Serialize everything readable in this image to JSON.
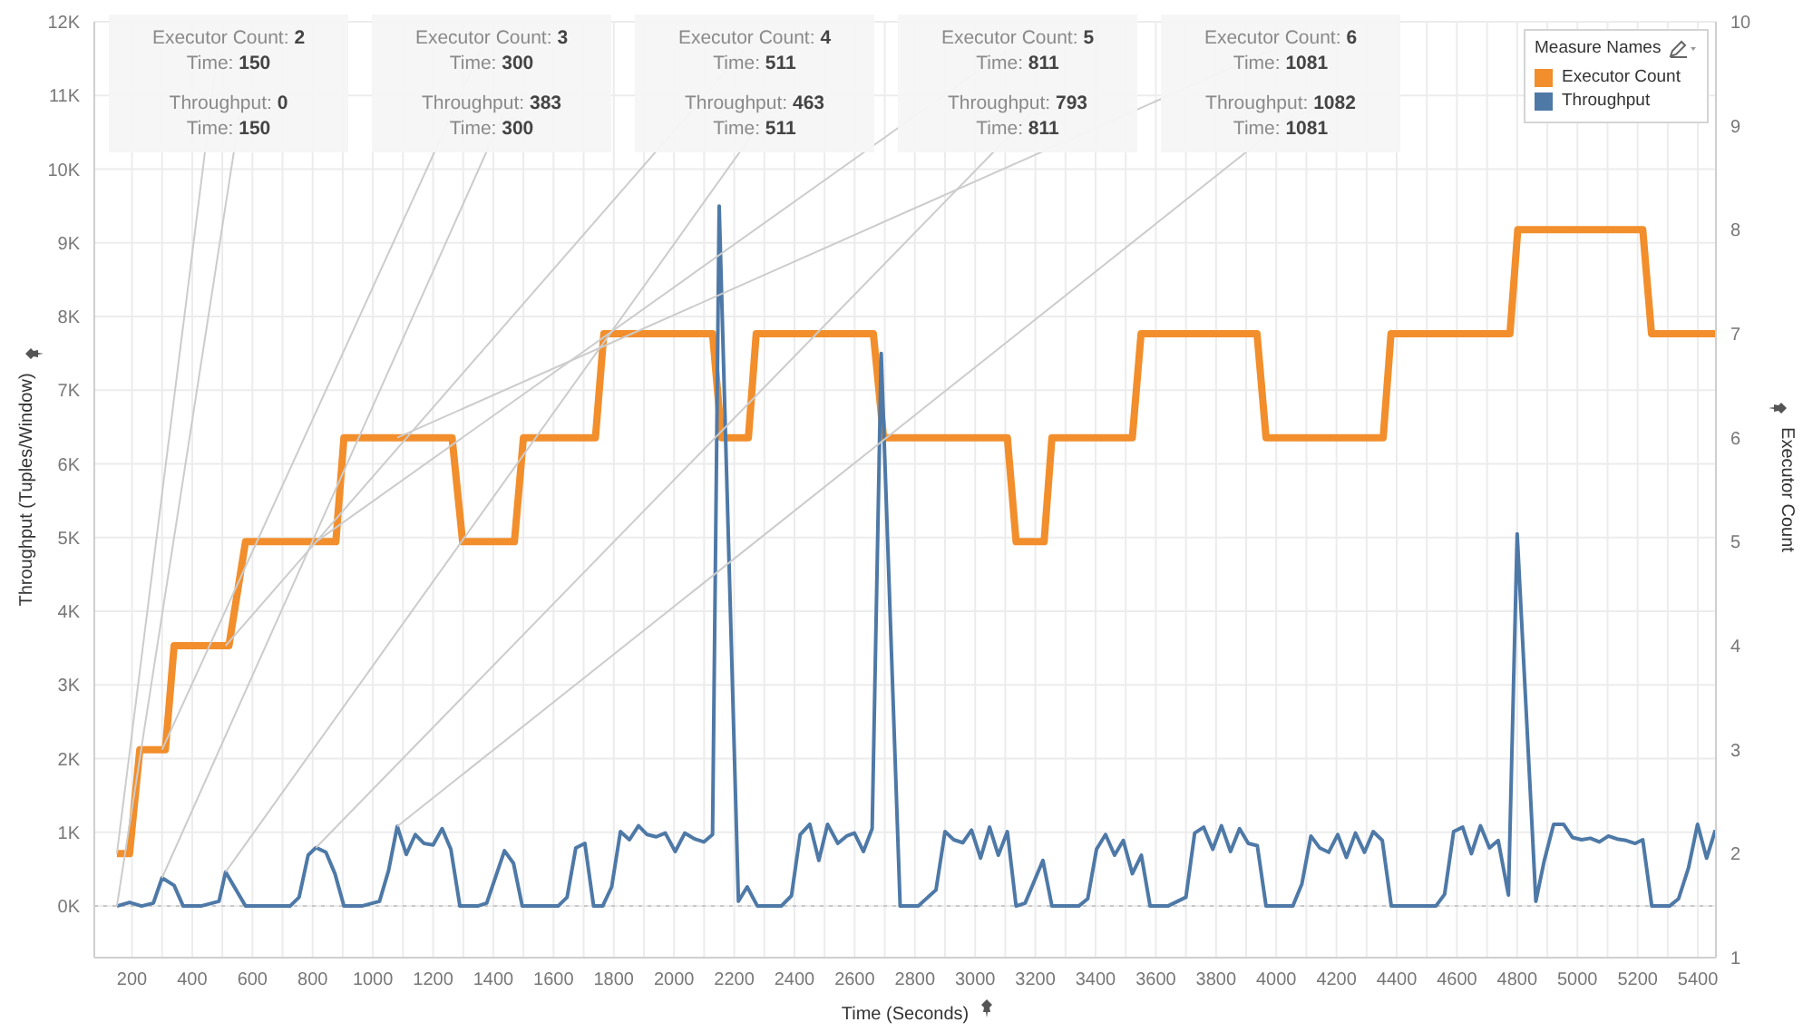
{
  "chart_data": {
    "type": "line",
    "xlabel": "Time (Seconds)",
    "ylabel": "Throughput (Tuples/Window)",
    "y2label": "Executor Count",
    "legend_title": "Measure Names",
    "legend": "top right",
    "grid": true,
    "xlim": [
      75,
      5460
    ],
    "xticks": [
      200,
      {
        "value": 300,
        "label": null
      },
      400,
      {
        "value": 500,
        "label": null
      },
      600,
      {
        "value": 700,
        "label": null
      },
      800,
      {
        "value": 900,
        "label": null
      },
      1000,
      {
        "value": 1100,
        "label": null
      },
      1200,
      {
        "value": 1300,
        "label": null
      },
      1400,
      {
        "value": 1500,
        "label": null
      },
      1600,
      {
        "value": 1700,
        "label": null
      },
      1800,
      {
        "value": 1900,
        "label": null
      },
      2000,
      {
        "value": 2100,
        "label": null
      },
      2200,
      {
        "value": 2300,
        "label": null
      },
      2400,
      {
        "value": 2500,
        "label": null
      },
      2600,
      {
        "value": 2700,
        "label": null
      },
      2800,
      {
        "value": 2900,
        "label": null
      },
      3000,
      {
        "value": 3100,
        "label": null
      },
      3200,
      {
        "value": 3300,
        "label": null
      },
      3400,
      {
        "value": 3500,
        "label": null
      },
      3600,
      {
        "value": 3700,
        "label": null
      },
      3800,
      {
        "value": 3900,
        "label": null
      },
      4000,
      {
        "value": 4100,
        "label": null
      },
      4200,
      {
        "value": 4300,
        "label": null
      },
      4400,
      {
        "value": 4500,
        "label": null
      },
      4600,
      {
        "value": 4700,
        "label": null
      },
      4800,
      {
        "value": 4900,
        "label": null
      },
      5000,
      {
        "value": 5100,
        "label": null
      },
      5200,
      {
        "value": 5300,
        "label": null
      },
      5400
    ],
    "ylim": [
      -700,
      12000
    ],
    "yticks": [
      {
        "value": 0,
        "label": "0K"
      },
      {
        "value": 1000,
        "label": "1K"
      },
      {
        "value": 2000,
        "label": "2K"
      },
      {
        "value": 3000,
        "label": "3K"
      },
      {
        "value": 4000,
        "label": "4K"
      },
      {
        "value": 5000,
        "label": "5K"
      },
      {
        "value": 6000,
        "label": "6K"
      },
      {
        "value": 7000,
        "label": "7K"
      },
      {
        "value": 8000,
        "label": "8K"
      },
      {
        "value": 9000,
        "label": "9K"
      },
      {
        "value": 10000,
        "label": "10K"
      },
      {
        "value": 11000,
        "label": "11K"
      },
      {
        "value": 12000,
        "label": "12K"
      }
    ],
    "y2lim": [
      1,
      10
    ],
    "y2ticks": [
      1,
      2,
      3,
      4,
      5,
      6,
      7,
      8,
      9,
      10
    ],
    "ref_lines": [
      {
        "axis": "y",
        "value": 0,
        "color": "#c8c8c8",
        "line_style": "dotted"
      }
    ],
    "annotations": [
      "Executor Count: 2",
      "Time: 150",
      {
        "text": "Throughput: 0",
        "x": 150,
        "y": 0
      },
      "Time: 150",
      "Executor Count: 3",
      "Time: 300",
      {
        "text": "Throughput: 383",
        "x": 300,
        "y": 383
      },
      "Time: 300",
      "Executor Count: 4",
      "Time: 511",
      {
        "text": "Throughput: 463",
        "x": 511,
        "y": 463
      },
      "Time: 511",
      "Executor Count: 5",
      "Time: 811",
      {
        "text": "Throughput: 793",
        "x": 811,
        "y": 793
      },
      "Time: 811",
      "Executor Count: 6",
      "Time: 1081",
      {
        "text": "Throughput: 1082",
        "x": 1081,
        "y": 1082
      },
      "Time: 1081"
    ],
    "series": [
      {
        "name": "Executor Count",
        "color": "#f28e2b",
        "axis": "y2",
        "x": [
          150,
          192,
          226,
          311,
          340,
          522,
          577,
          877,
          904,
          1263,
          1298,
          1470,
          1500,
          1739,
          1767,
          2128,
          2158,
          2247,
          2273,
          2662,
          2696,
          3107,
          3136,
          3229,
          3255,
          3522,
          3551,
          3936,
          3966,
          4355,
          4381,
          4776,
          4802,
          5217,
          5246,
          5458
        ],
        "values": [
          2,
          2,
          3,
          3,
          4,
          4,
          5,
          5,
          6,
          6,
          5,
          5,
          6,
          6,
          7,
          7,
          6,
          6,
          7,
          7,
          6,
          6,
          5,
          5,
          6,
          6,
          7,
          7,
          6,
          6,
          7,
          7,
          8,
          8,
          7,
          7
        ]
      },
      {
        "name": "Throughput",
        "color": "#4e79a7",
        "x": [
          150,
          192,
          232,
          271,
          300,
          340,
          370,
          429,
          489,
          511,
          577,
          725,
          755,
          785,
          811,
          844,
          874,
          904,
          963,
          1022,
          1052,
          1081,
          1111,
          1141,
          1170,
          1200,
          1230,
          1259,
          1289,
          1348,
          1378,
          1437,
          1467,
          1496,
          1615,
          1645,
          1674,
          1704,
          1733,
          1763,
          1793,
          1822,
          1852,
          1882,
          1911,
          1941,
          1971,
          2004,
          2036,
          2069,
          2099,
          2128,
          2150,
          2214,
          2243,
          2277,
          2356,
          2390,
          2419,
          2451,
          2481,
          2510,
          2544,
          2573,
          2599,
          2629,
          2658,
          2688,
          2751,
          2811,
          2870,
          2900,
          2929,
          2959,
          2988,
          3018,
          3048,
          3077,
          3107,
          3136,
          3166,
          3225,
          3255,
          3344,
          3374,
          3403,
          3433,
          3463,
          3492,
          3522,
          3552,
          3581,
          3640,
          3700,
          3729,
          3759,
          3789,
          3818,
          3848,
          3878,
          3907,
          3937,
          3966,
          4055,
          4085,
          4115,
          4144,
          4174,
          4204,
          4233,
          4263,
          4293,
          4322,
          4352,
          4382,
          4530,
          4559,
          4589,
          4619,
          4648,
          4678,
          4708,
          4737,
          4771,
          4800,
          4862,
          4889,
          4921,
          4954,
          4984,
          5014,
          5043,
          5073,
          5103,
          5132,
          5162,
          5192,
          5217,
          5247,
          5306,
          5336,
          5369,
          5399,
          5429,
          5458
        ],
        "values": [
          0,
          50,
          0,
          40,
          383,
          280,
          0,
          0,
          65,
          463,
          0,
          0,
          120,
          690,
          793,
          730,
          440,
          0,
          0,
          65,
          480,
          1082,
          700,
          970,
          850,
          830,
          1050,
          770,
          0,
          0,
          40,
          750,
          580,
          0,
          0,
          120,
          790,
          850,
          0,
          0,
          260,
          1010,
          900,
          1090,
          970,
          940,
          990,
          740,
          990,
          910,
          870,
          970,
          9500,
          65,
          260,
          0,
          0,
          140,
          970,
          1110,
          620,
          1110,
          850,
          950,
          990,
          740,
          1050,
          7500,
          0,
          0,
          220,
          1010,
          900,
          860,
          1030,
          650,
          1070,
          690,
          1010,
          0,
          40,
          620,
          0,
          0,
          100,
          770,
          970,
          690,
          890,
          440,
          690,
          0,
          0,
          120,
          990,
          1070,
          770,
          1090,
          740,
          1050,
          850,
          820,
          0,
          0,
          300,
          950,
          790,
          730,
          970,
          660,
          990,
          730,
          1010,
          890,
          0,
          0,
          160,
          1010,
          1070,
          710,
          1090,
          790,
          890,
          150,
          5050,
          65,
          600,
          1110,
          1110,
          930,
          900,
          920,
          870,
          950,
          910,
          890,
          850,
          900,
          0,
          0,
          100,
          520,
          1110,
          650,
          1030
        ]
      }
    ]
  }
}
